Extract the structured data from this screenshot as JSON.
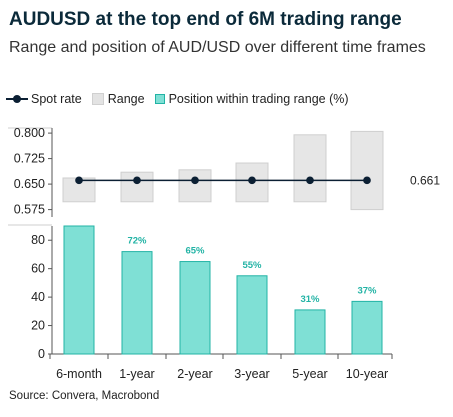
{
  "header": {
    "title": "AUDUSD at the top end of 6M trading range",
    "subtitle": "Range and position of AUD/USD over different time frames"
  },
  "legend": [
    {
      "key": "spot",
      "label": "Spot rate"
    },
    {
      "key": "range",
      "label": "Range"
    },
    {
      "key": "position",
      "label": "Position within trading range (%)"
    }
  ],
  "source": "Source: Convera, Macrobond",
  "chart_data": [
    {
      "type": "range",
      "categories": [
        "6-month",
        "1-year",
        "2-year",
        "3-year",
        "5-year",
        "10-year"
      ],
      "spot": 0.661,
      "spot_label": "0.661",
      "ranges": [
        [
          0.598,
          0.668
        ],
        [
          0.598,
          0.685
        ],
        [
          0.598,
          0.692
        ],
        [
          0.598,
          0.712
        ],
        [
          0.598,
          0.795
        ],
        [
          0.575,
          0.805
        ]
      ],
      "yticks": [
        "0.575",
        "0.650",
        "0.725",
        "0.800"
      ],
      "ylim": [
        0.565,
        0.815
      ],
      "colors": {
        "spot": "#0b1f33",
        "range_fill": "#e6e6e6",
        "range_stroke": "#cfcfcf"
      }
    },
    {
      "type": "bar",
      "categories": [
        "6-month",
        "1-year",
        "2-year",
        "3-year",
        "5-year",
        "10-year"
      ],
      "values": [
        90,
        72,
        65,
        55,
        31,
        37
      ],
      "data_labels": [
        "",
        "72%",
        "65%",
        "55%",
        "31%",
        "37%"
      ],
      "yticks": [
        "0",
        "20",
        "40",
        "60",
        "80"
      ],
      "ylim": [
        0,
        90
      ],
      "colors": {
        "fill": "#7fe0d5",
        "stroke": "#22b3a5",
        "label": "#22b3a5"
      }
    }
  ]
}
